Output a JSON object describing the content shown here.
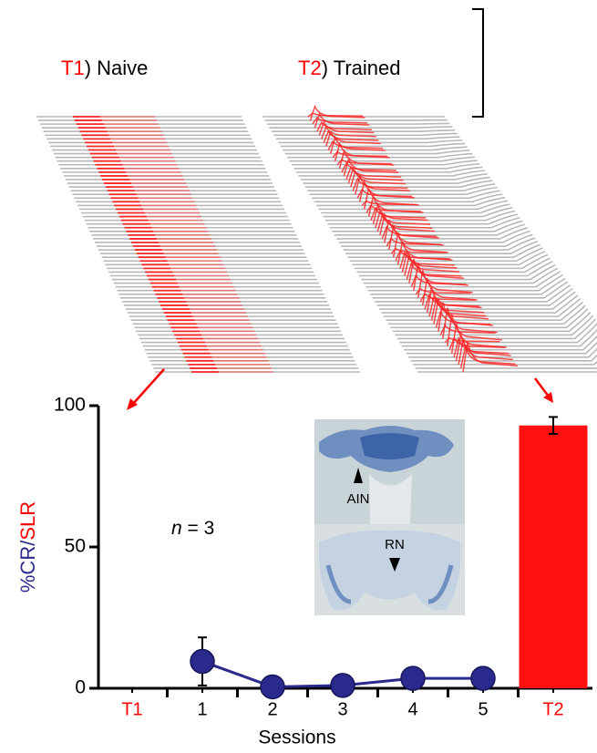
{
  "chart_data": {
    "type": "line",
    "panel_labels": [
      {
        "tag": "T1",
        "text": ") Naive"
      },
      {
        "tag": "T2",
        "text": ") Trained"
      }
    ],
    "categories": [
      "T1",
      "1",
      "2",
      "3",
      "4",
      "5",
      "T2"
    ],
    "category_colors": [
      "#ff0000",
      "#000000",
      "#000000",
      "#000000",
      "#000000",
      "#000000",
      "#ff0000"
    ],
    "series": [
      {
        "type": "line",
        "color": "#2a2a8c",
        "values": [
          null,
          9.5,
          0.5,
          1,
          3.5,
          3.5,
          null
        ],
        "errors": [
          null,
          8.5,
          null,
          null,
          null,
          null,
          null
        ]
      },
      {
        "type": "bar",
        "color": "#ff1010",
        "values": [
          null,
          null,
          null,
          null,
          null,
          null,
          93
        ],
        "errors": [
          null,
          null,
          null,
          null,
          null,
          null,
          3
        ]
      }
    ],
    "ylim": [
      0,
      100
    ],
    "yticks": [
      0,
      50,
      100
    ],
    "ylabel_parts": [
      "%",
      "CR",
      "/",
      "SLR"
    ],
    "ylabel_colors": [
      "#2a2a8c",
      "#2a2a8c",
      "#2a2a8c",
      "#ff0000"
    ],
    "xlabel": "Sessions",
    "annotation": {
      "italic": "n",
      "text": " = 3"
    },
    "inset_labels": [
      "AIN",
      "RN"
    ]
  }
}
